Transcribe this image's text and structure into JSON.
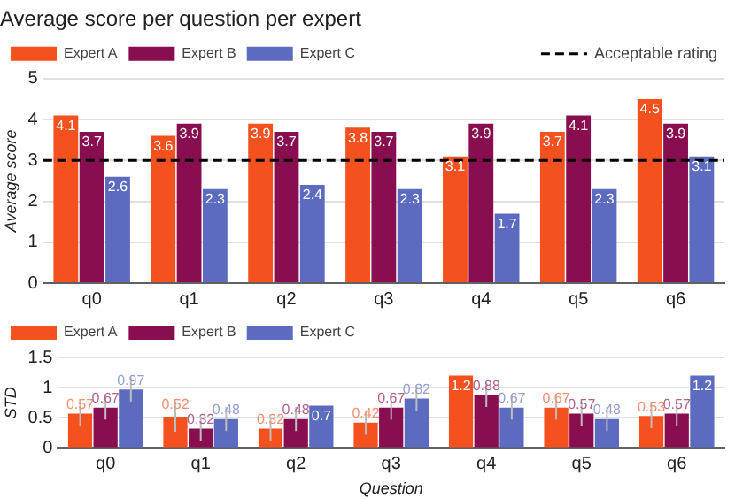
{
  "chart_data": [
    {
      "type": "bar",
      "title": "Average score per question per expert",
      "ylabel": "Average score",
      "categories": [
        "q0",
        "q1",
        "q2",
        "q3",
        "q4",
        "q5",
        "q6"
      ],
      "series": [
        {
          "name": "Expert A",
          "color": "#f4511e",
          "values": [
            4.1,
            3.6,
            3.9,
            3.8,
            3.1,
            3.7,
            4.5
          ]
        },
        {
          "name": "Expert B",
          "color": "#880e4f",
          "values": [
            3.7,
            3.9,
            3.7,
            3.7,
            3.9,
            4.1,
            3.9
          ]
        },
        {
          "name": "Expert C",
          "color": "#5c6bc0",
          "values": [
            2.6,
            2.3,
            2.4,
            2.3,
            1.7,
            2.3,
            3.1
          ]
        }
      ],
      "ylim": [
        0,
        5
      ],
      "yticks": [
        0,
        1,
        2,
        3,
        4,
        5
      ],
      "grid": "y",
      "legend": "top left",
      "data_labels": true,
      "ref_lines": [
        {
          "axis": "y",
          "value": 3,
          "label": "Acceptable rating",
          "color": "#000000",
          "line_style": "dashed"
        }
      ]
    },
    {
      "type": "bar",
      "xlabel": "Question",
      "ylabel": "STD",
      "categories": [
        "q0",
        "q1",
        "q2",
        "q3",
        "q4",
        "q5",
        "q6"
      ],
      "series": [
        {
          "name": "Expert A",
          "color": "#f4511e",
          "values": [
            0.57,
            0.52,
            0.32,
            0.42,
            1.2,
            0.67,
            0.53
          ],
          "errors": [
            0.2,
            0.25,
            0.2,
            0.2,
            null,
            0.2,
            0.2
          ]
        },
        {
          "name": "Expert B",
          "color": "#880e4f",
          "values": [
            0.67,
            0.32,
            0.48,
            0.67,
            0.88,
            0.57,
            0.57
          ],
          "errors": [
            0.2,
            0.2,
            0.2,
            0.2,
            0.2,
            0.2,
            0.2
          ]
        },
        {
          "name": "Expert C",
          "color": "#5c6bc0",
          "values": [
            0.97,
            0.48,
            0.7,
            0.82,
            0.67,
            0.48,
            1.2
          ],
          "errors": [
            0.2,
            0.2,
            null,
            0.2,
            0.2,
            0.2,
            null
          ]
        }
      ],
      "ylim": [
        0,
        1.5
      ],
      "yticks": [
        0,
        0.5,
        1,
        1.5
      ],
      "grid": "y",
      "legend": "top left",
      "data_labels": true
    }
  ]
}
